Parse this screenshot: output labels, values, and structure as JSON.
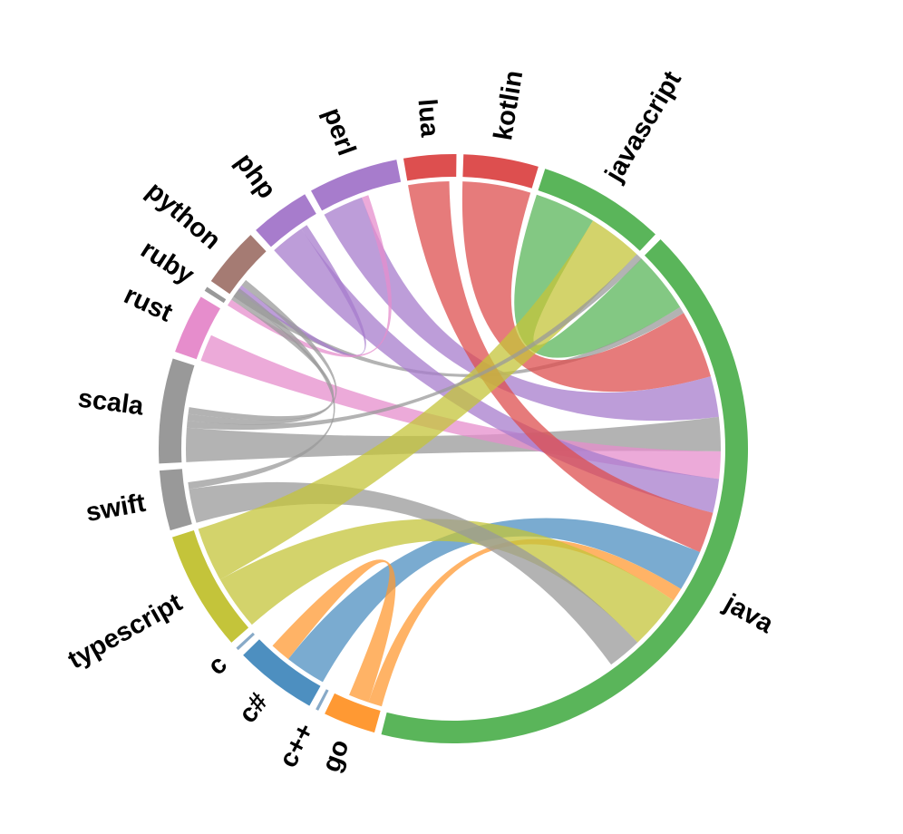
{
  "chart_data": {
    "type": "chord",
    "groups": [
      {
        "name": "java",
        "value": 101,
        "color": "#5ab55a"
      },
      {
        "name": "go",
        "value": 7,
        "color": "#ff9933"
      },
      {
        "name": "c++",
        "value": 0.4,
        "color": "#88aac8"
      },
      {
        "name": "c#",
        "value": 11,
        "color": "#4d8fc0"
      },
      {
        "name": "c",
        "value": 0.4,
        "color": "#88aac8"
      },
      {
        "name": "typescript",
        "value": 16,
        "color": "#c4c43a"
      },
      {
        "name": "swift",
        "value": 8,
        "color": "#999999"
      },
      {
        "name": "scala",
        "value": 14,
        "color": "#999999"
      },
      {
        "name": "rust",
        "value": 8,
        "color": "#e68dcc"
      },
      {
        "name": "ruby",
        "value": 0.6,
        "color": "#999999"
      },
      {
        "name": "python",
        "value": 8,
        "color": "#a57b73"
      },
      {
        "name": "php",
        "value": 8,
        "color": "#a77ccc"
      },
      {
        "name": "perl",
        "value": 12,
        "color": "#a77ccc"
      },
      {
        "name": "lua",
        "value": 7,
        "color": "#dd4f4f"
      },
      {
        "name": "kotlin",
        "value": 10,
        "color": "#dd4f4f"
      },
      {
        "name": "javascript",
        "value": 17,
        "color": "#5ab55a"
      }
    ],
    "links": [
      {
        "source": "java",
        "target": "javascript",
        "value": 9,
        "color": "#5ab55a"
      },
      {
        "source": "java",
        "target": "python",
        "value": 1,
        "color": "#999999"
      },
      {
        "source": "java",
        "target": "kotlin",
        "value": 10,
        "color": "#dd4f4f"
      },
      {
        "source": "java",
        "target": "perl",
        "value": 6,
        "color": "#a77ccc"
      },
      {
        "source": "java",
        "target": "scala",
        "value": 5,
        "color": "#999999"
      },
      {
        "source": "java",
        "target": "rust",
        "value": 4,
        "color": "#e68dcc"
      },
      {
        "source": "java",
        "target": "php",
        "value": 5,
        "color": "#a77ccc"
      },
      {
        "source": "java",
        "target": "lua",
        "value": 6,
        "color": "#dd4f4f"
      },
      {
        "source": "java",
        "target": "c#",
        "value": 6,
        "color": "#4d8fc0"
      },
      {
        "source": "java",
        "target": "go",
        "value": 2,
        "color": "#ff9933"
      },
      {
        "source": "java",
        "target": "typescript",
        "value": 8,
        "color": "#c4c43a"
      },
      {
        "source": "java",
        "target": "swift",
        "value": 5,
        "color": "#999999"
      },
      {
        "source": "javascript",
        "target": "typescript",
        "value": 8,
        "color": "#c4c43a"
      },
      {
        "source": "javascript",
        "target": "scala",
        "value": 1,
        "color": "#999999"
      },
      {
        "source": "go",
        "target": "c#",
        "value": 3,
        "color": "#ff9933"
      },
      {
        "source": "php",
        "target": "python",
        "value": 1,
        "color": "#a77ccc"
      },
      {
        "source": "perl",
        "target": "ruby",
        "value": 1,
        "color": "#e68dcc"
      },
      {
        "source": "python",
        "target": "scala",
        "value": 1,
        "color": "#999999"
      },
      {
        "source": "ruby",
        "target": "scala",
        "value": 1,
        "color": "#999999"
      },
      {
        "source": "swift",
        "target": "ruby",
        "value": 1,
        "color": "#999999"
      }
    ]
  }
}
